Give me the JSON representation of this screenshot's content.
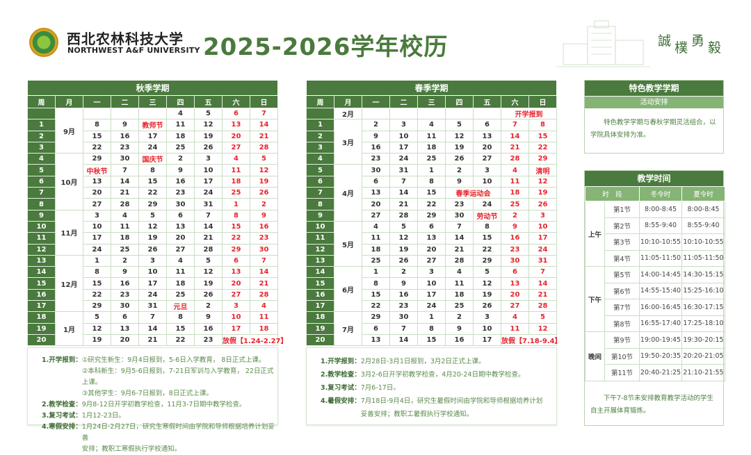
{
  "header": {
    "university_cn": "西北农林科技大学",
    "university_en": "NORTHWEST A&F UNIVERSITY",
    "title": "2025-2026学年校历",
    "motto": [
      "誠",
      "樸",
      "勇",
      "毅"
    ]
  },
  "colors": {
    "primary": "#4a7a3d",
    "secondary": "#86b476",
    "weekend": "#e8242c"
  },
  "column_headers": [
    "周",
    "月",
    "一",
    "二",
    "三",
    "四",
    "五",
    "六",
    "日"
  ],
  "autumn": {
    "title": "秋季学期",
    "months": [
      {
        "label": "9月",
        "rows": 4
      },
      {
        "label": "10月",
        "rows": 5
      },
      {
        "label": "11月",
        "rows": 4
      },
      {
        "label": "12月",
        "rows": 5
      },
      {
        "label": "1月",
        "rows": 3
      }
    ],
    "rows": [
      {
        "week": "",
        "days": [
          "",
          "",
          "",
          "4",
          "5",
          "6",
          "7"
        ]
      },
      {
        "week": "1",
        "days": [
          "8",
          "9",
          "教师节",
          "11",
          "12",
          "13",
          "14"
        ]
      },
      {
        "week": "2",
        "days": [
          "15",
          "16",
          "17",
          "18",
          "19",
          "20",
          "21"
        ]
      },
      {
        "week": "3",
        "days": [
          "22",
          "23",
          "24",
          "25",
          "26",
          "27",
          "28"
        ]
      },
      {
        "week": "4",
        "days": [
          "29",
          "30",
          "国庆节",
          "2",
          "3",
          "4",
          "5"
        ]
      },
      {
        "week": "5",
        "days": [
          "中秋节",
          "7",
          "8",
          "9",
          "10",
          "11",
          "12"
        ]
      },
      {
        "week": "6",
        "days": [
          "13",
          "14",
          "15",
          "16",
          "17",
          "18",
          "19"
        ]
      },
      {
        "week": "7",
        "days": [
          "20",
          "21",
          "22",
          "23",
          "24",
          "25",
          "26"
        ]
      },
      {
        "week": "8",
        "days": [
          "27",
          "28",
          "29",
          "30",
          "31",
          "1",
          "2"
        ]
      },
      {
        "week": "9",
        "days": [
          "3",
          "4",
          "5",
          "6",
          "7",
          "8",
          "9"
        ]
      },
      {
        "week": "10",
        "days": [
          "10",
          "11",
          "12",
          "13",
          "14",
          "15",
          "16"
        ]
      },
      {
        "week": "11",
        "days": [
          "17",
          "18",
          "19",
          "20",
          "21",
          "22",
          "23"
        ]
      },
      {
        "week": "12",
        "days": [
          "24",
          "25",
          "26",
          "27",
          "28",
          "29",
          "30"
        ]
      },
      {
        "week": "13",
        "days": [
          "1",
          "2",
          "3",
          "4",
          "5",
          "6",
          "7"
        ]
      },
      {
        "week": "14",
        "days": [
          "8",
          "9",
          "10",
          "11",
          "12",
          "13",
          "14"
        ]
      },
      {
        "week": "15",
        "days": [
          "15",
          "16",
          "17",
          "18",
          "19",
          "20",
          "21"
        ]
      },
      {
        "week": "16",
        "days": [
          "22",
          "23",
          "24",
          "25",
          "26",
          "27",
          "28"
        ]
      },
      {
        "week": "17",
        "days": [
          "29",
          "30",
          "31",
          "元旦",
          "2",
          "3",
          "4"
        ]
      },
      {
        "week": "18",
        "days": [
          "5",
          "6",
          "7",
          "8",
          "9",
          "10",
          "11"
        ]
      },
      {
        "week": "19",
        "days": [
          "12",
          "13",
          "14",
          "15",
          "16",
          "17",
          "18"
        ]
      },
      {
        "week": "20",
        "days": [
          "19",
          "20",
          "21",
          "22",
          "23",
          {
            "t": "放假【1.24-2.27】",
            "span": 2
          }
        ]
      }
    ],
    "notes": [
      {
        "label": "1.开学报到：",
        "lines": [
          "①研究生新生：9月4日报到，5-6日入学教育， 8日正式上课。",
          "②本科新生：9月5-6日报到，7-21日军训与入学教育， 22日正式上课。",
          "③其他学生：9月6-7日报到，8日正式上课。"
        ]
      },
      {
        "label": "2.教学检查：",
        "lines": [
          "9月8-12日开学初教学检查，11月3-7日期中教学检查。"
        ]
      },
      {
        "label": "3.复习考试：",
        "lines": [
          "1月12-23日。"
        ]
      },
      {
        "label": "4.寒假安排：",
        "lines": [
          "1月24日-2月27日，研究生寒假时间由学院和导师根据培养计划妥善",
          "安排；教职工寒假执行学校通知。"
        ]
      }
    ]
  },
  "spring": {
    "title": "春季学期",
    "months": [
      {
        "label": "2月",
        "rows": 1
      },
      {
        "label": "3月",
        "rows": 4
      },
      {
        "label": "4月",
        "rows": 5
      },
      {
        "label": "5月",
        "rows": 4
      },
      {
        "label": "6月",
        "rows": 4
      },
      {
        "label": "7月",
        "rows": 3
      }
    ],
    "rows": [
      {
        "week": "",
        "days": [
          "",
          "",
          "",
          "",
          "",
          {
            "t": "开学报到",
            "span": 2
          }
        ]
      },
      {
        "week": "1",
        "days": [
          "2",
          "3",
          "4",
          "5",
          "6",
          "7",
          "8"
        ]
      },
      {
        "week": "2",
        "days": [
          "9",
          "10",
          "11",
          "12",
          "13",
          "14",
          "15"
        ]
      },
      {
        "week": "3",
        "days": [
          "16",
          "17",
          "18",
          "19",
          "20",
          "21",
          "22"
        ]
      },
      {
        "week": "4",
        "days": [
          "23",
          "24",
          "25",
          "26",
          "27",
          "28",
          "29"
        ]
      },
      {
        "week": "5",
        "days": [
          "30",
          "31",
          "1",
          "2",
          "3",
          "4",
          "清明"
        ]
      },
      {
        "week": "6",
        "days": [
          "6",
          "7",
          "8",
          "9",
          "10",
          "11",
          "12"
        ]
      },
      {
        "week": "7",
        "days": [
          "13",
          "14",
          "15",
          {
            "t": "春季运动会",
            "span": 2
          },
          "18",
          "19"
        ]
      },
      {
        "week": "8",
        "days": [
          "20",
          "21",
          "22",
          "23",
          "24",
          "25",
          "26"
        ]
      },
      {
        "week": "9",
        "days": [
          "27",
          "28",
          "29",
          "30",
          "劳动节",
          "2",
          "3"
        ]
      },
      {
        "week": "10",
        "days": [
          "4",
          "5",
          "6",
          "7",
          "8",
          "9",
          "10"
        ]
      },
      {
        "week": "11",
        "days": [
          "11",
          "12",
          "13",
          "14",
          "15",
          "16",
          "17"
        ]
      },
      {
        "week": "12",
        "days": [
          "18",
          "19",
          "20",
          "21",
          "22",
          "23",
          "24"
        ]
      },
      {
        "week": "13",
        "days": [
          "25",
          "26",
          "27",
          "28",
          "29",
          "30",
          "31"
        ]
      },
      {
        "week": "14",
        "days": [
          "1",
          "2",
          "3",
          "4",
          "5",
          "6",
          "7"
        ]
      },
      {
        "week": "15",
        "days": [
          "8",
          "9",
          "10",
          "11",
          "12",
          "13",
          "14"
        ]
      },
      {
        "week": "16",
        "days": [
          "15",
          "16",
          "17",
          "18",
          "19",
          "20",
          "21"
        ]
      },
      {
        "week": "17",
        "days": [
          "22",
          "23",
          "24",
          "25",
          "26",
          "27",
          "28"
        ]
      },
      {
        "week": "18",
        "days": [
          "29",
          "30",
          "1",
          "2",
          "3",
          "4",
          "5"
        ]
      },
      {
        "week": "19",
        "days": [
          "6",
          "7",
          "8",
          "9",
          "10",
          "11",
          "12"
        ]
      },
      {
        "week": "20",
        "days": [
          "13",
          "14",
          "15",
          "16",
          "17",
          {
            "t": "放假【7.18-9.4】",
            "span": 2
          }
        ]
      }
    ],
    "notes": [
      {
        "label": "1.开学报到：",
        "lines": [
          "2月28日-3月1日报到，3月2日正式上课。"
        ]
      },
      {
        "label": "2.教学检查：",
        "lines": [
          "3月2-6日开学初教学检查，4月20-24日期中教学检查。"
        ]
      },
      {
        "label": "3.复习考试：",
        "lines": [
          "7月6-17日。"
        ]
      },
      {
        "label": "4.暑假安排：",
        "lines": [
          "7月18日-9月4日，研究生暑假时间由学院和导师根据培养计划",
          "妥善安排；教职工暑假执行学校通知。"
        ]
      }
    ]
  },
  "special": {
    "title": "特色教学学期",
    "subtitle": "活动安排",
    "text": "特色教学学期与春秋学期灵活组合，以学院具体安排为准。"
  },
  "schedule": {
    "title": "教学时间",
    "headers": [
      "时　段",
      "冬令时",
      "夏令时"
    ],
    "groups": [
      {
        "label": "上午",
        "rows": [
          [
            "第1节",
            "8:00-8:45",
            "8:00-8:45"
          ],
          [
            "第2节",
            "8:55-9:40",
            "8:55-9:40"
          ],
          [
            "第3节",
            "10:10-10:55",
            "10:10-10:55"
          ],
          [
            "第4节",
            "11:05-11:50",
            "11:05-11:50"
          ]
        ]
      },
      {
        "label": "下午",
        "rows": [
          [
            "第5节",
            "14:00-14:45",
            "14:30-15:15"
          ],
          [
            "第6节",
            "14:55-15:40",
            "15:25-16:10"
          ],
          [
            "第7节",
            "16:00-16:45",
            "16:30-17:15"
          ],
          [
            "第8节",
            "16:55-17:40",
            "17:25-18:10"
          ]
        ]
      },
      {
        "label": "晚间",
        "rows": [
          [
            "第9节",
            "19:00-19:45",
            "19:30-20:15"
          ],
          [
            "第10节",
            "19:50-20:35",
            "20:20-21:05"
          ],
          [
            "第11节",
            "20:40-21:25",
            "21:10-21:55"
          ]
        ]
      }
    ],
    "note": "下午7-8节未安排教育教学活动的学生自主开展体育锻炼。"
  }
}
